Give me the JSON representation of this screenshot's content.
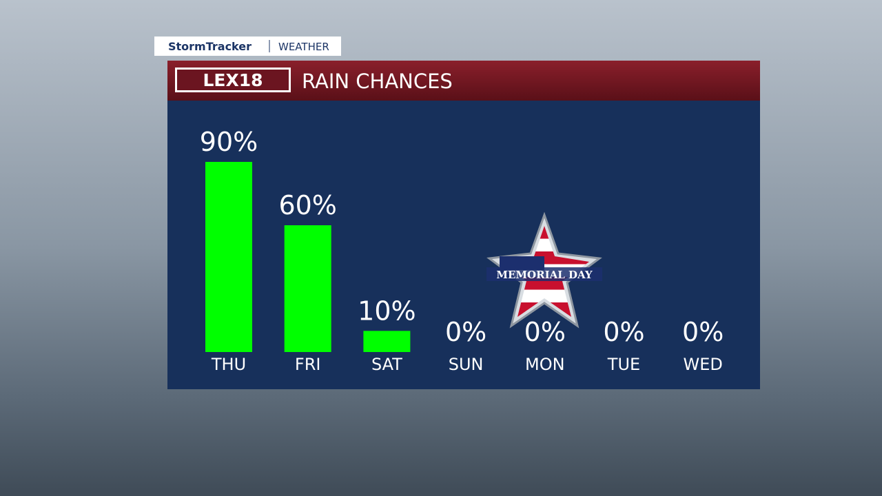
{
  "header": {
    "brand": "StormTracker",
    "section": "WEATHER",
    "station": "LEX18"
  },
  "chart_data": {
    "type": "bar",
    "title": "RAIN CHANCES",
    "categories": [
      "THU",
      "FRI",
      "SAT",
      "SUN",
      "MON",
      "TUE",
      "WED"
    ],
    "values": [
      90,
      60,
      10,
      0,
      0,
      0,
      0
    ],
    "value_labels": [
      "90%",
      "60%",
      "10%",
      "0%",
      "0%",
      "0%",
      "0%"
    ],
    "color": "#00ff00",
    "annotations": [
      {
        "text": "MEMORIAL DAY",
        "category": "MON"
      }
    ]
  }
}
